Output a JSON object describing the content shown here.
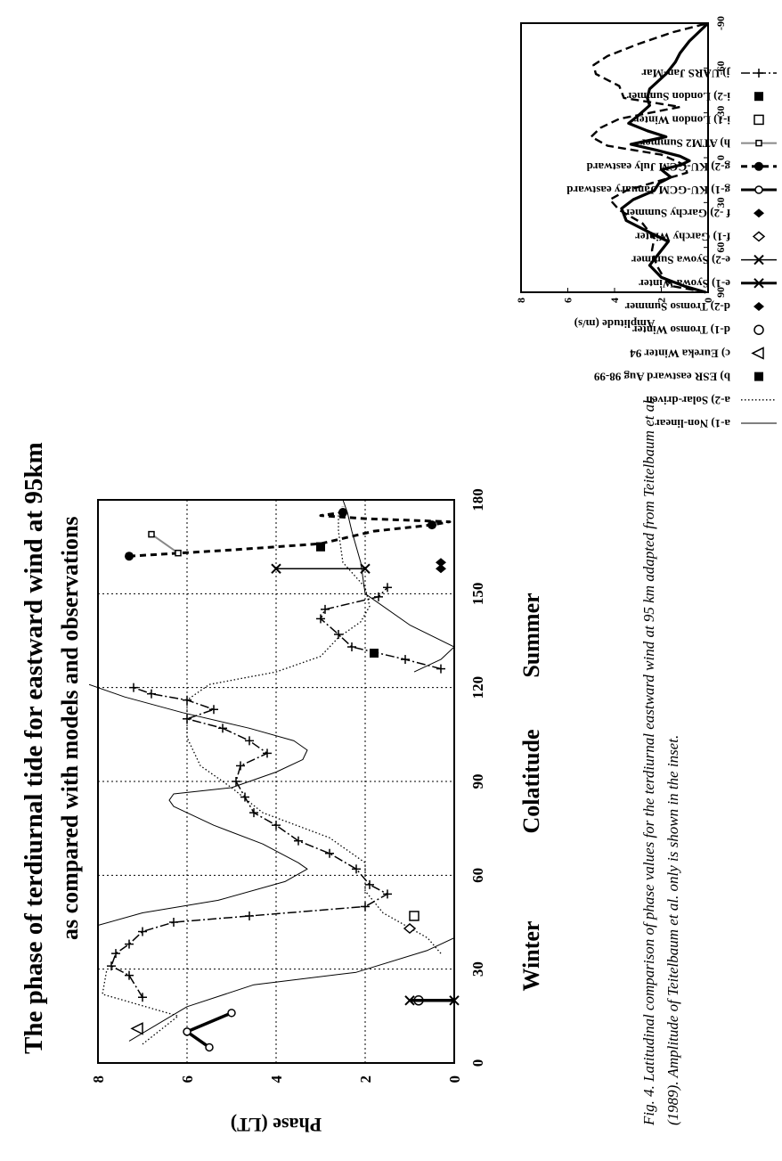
{
  "figure": {
    "title": "The phase of terdiurnal tide for eastward wind at 95km",
    "subtitle": "as compared with models and observations",
    "caption": "Fig. 4.  Latitudinal comparison of phase values for the terdiurnal eastward wind at 95 km adapted from Teitelbaum et al. (1989).  Amplitude of Teitelbaum et al. only is shown in the inset.",
    "season_left": "Winter",
    "season_right": "Summer"
  },
  "chart_data": [
    {
      "type": "line",
      "xlabel": "Colatitude",
      "ylabel": "Phase (LT)",
      "xlim": [
        0,
        180
      ],
      "ylim": [
        0,
        8
      ],
      "xticks": [
        "0",
        "30",
        "60",
        "90",
        "120",
        "150",
        "180"
      ],
      "yticks": [
        "0",
        "2",
        "4",
        "6",
        "8"
      ],
      "grid": true,
      "legend_position": "right",
      "series": [
        {
          "name": "a-1) Non-linear",
          "style": "thin-solid",
          "x": [
            7,
            18,
            25,
            29,
            36,
            40,
            44,
            48,
            52,
            58,
            62,
            64,
            70,
            76,
            82,
            84,
            86,
            88,
            93,
            97,
            100,
            103,
            107,
            112,
            117,
            121,
            125,
            129,
            133,
            140,
            150,
            160,
            170,
            176,
            180
          ],
          "y": [
            7.3,
            6.0,
            4.5,
            2.2,
            0.6,
            0.0,
            8.0,
            7.0,
            5.3,
            3.8,
            3.3,
            3.5,
            4.3,
            5.4,
            6.3,
            6.4,
            6.3,
            5.0,
            4.0,
            3.4,
            3.3,
            3.6,
            4.6,
            6.1,
            7.4,
            8.2,
            0.9,
            0.3,
            0.0,
            1.0,
            2.0,
            2.1,
            2.3,
            2.4,
            2.5
          ]
        },
        {
          "name": "a-2) Solar-driven",
          "style": "fine-dotted",
          "x": [
            6,
            15,
            22,
            30,
            35,
            40,
            48,
            55,
            64,
            72,
            80,
            88,
            95,
            104,
            110,
            116,
            121,
            125,
            130,
            136,
            141,
            146,
            152,
            160,
            170,
            176
          ],
          "y": [
            7.0,
            6.2,
            7.9,
            7.8,
            0.3,
            0.6,
            1.6,
            2.0,
            2.0,
            2.8,
            4.3,
            5.0,
            5.7,
            6.0,
            6.0,
            6.0,
            5.5,
            4.0,
            3.0,
            2.6,
            2.1,
            1.9,
            2.0,
            2.5,
            2.6,
            2.6
          ]
        },
        {
          "name": "b) ESR eastward Aug 98-99",
          "style": "marker-square-filled",
          "x": [
            131,
            165
          ],
          "y": [
            1.8,
            3.0
          ]
        },
        {
          "name": "c) Eureka Winter 94",
          "style": "marker-triangle",
          "x": [
            11
          ],
          "y": [
            7.1
          ]
        },
        {
          "name": "d-1) Tromso Winter",
          "style": "marker-circle",
          "x": [
            20
          ],
          "y": [
            0.8
          ]
        },
        {
          "name": "d-2) Tromso Summer",
          "style": "marker-diamond-filled",
          "x": [
            160
          ],
          "y": [
            0.3
          ]
        },
        {
          "name": "e-1) Syowa Winter",
          "style": "thick-bar-x",
          "x": [
            20,
            20
          ],
          "y": [
            0.0,
            1.0
          ]
        },
        {
          "name": "e-2) Syowa Summer",
          "style": "thin-bar-x",
          "x": [
            158,
            158
          ],
          "y": [
            4.0,
            2.0
          ]
        },
        {
          "name": "f-1) Garchy Winter",
          "style": "marker-diamond",
          "x": [
            43
          ],
          "y": [
            1.0
          ]
        },
        {
          "name": "f -2) Garchy Summer",
          "style": "marker-diamond-filled",
          "x": [
            158
          ],
          "y": [
            0.3
          ]
        },
        {
          "name": "g-1) KU-GCM January eastward",
          "style": "thick-solid-circle",
          "x": [
            5,
            10,
            16
          ],
          "y": [
            5.5,
            6.0,
            5.0
          ]
        },
        {
          "name": "g-2) KU-GCM July eastward",
          "style": "thick-dashed-circle",
          "x": [
            162,
            164,
            166,
            168,
            170,
            172,
            173,
            174,
            175,
            176,
            178
          ],
          "y": [
            7.3,
            5.0,
            3.0,
            2.4,
            1.8,
            0.5,
            0.1,
            2.0,
            3.0,
            2.5,
            2.5
          ]
        },
        {
          "name": "h) ATM2 Summer",
          "style": "thin-gray-square",
          "x": [
            163,
            169
          ],
          "y": [
            6.2,
            6.8
          ]
        },
        {
          "name": "i-1) London Winter",
          "style": "marker-square",
          "x": [
            47
          ],
          "y": [
            0.9
          ]
        },
        {
          "name": "i-2) London Summer",
          "style": "marker-square-filled",
          "x": [
            165
          ],
          "y": [
            3.0
          ]
        },
        {
          "name": "j) UARS Jan-Mar",
          "style": "dash-dot-plus",
          "x": [
            21,
            28,
            31,
            35,
            38,
            42,
            45,
            47,
            50,
            54,
            57,
            62,
            67,
            71,
            76,
            80,
            85,
            90,
            95,
            99,
            103,
            107,
            110,
            113,
            116,
            118,
            120,
            126,
            129,
            133,
            137,
            142,
            145,
            149,
            152
          ],
          "y": [
            7.0,
            7.3,
            7.7,
            7.6,
            7.3,
            7.0,
            6.3,
            4.6,
            2.0,
            1.5,
            1.9,
            2.2,
            2.8,
            3.5,
            4.0,
            4.5,
            4.7,
            4.9,
            4.8,
            4.2,
            4.6,
            5.2,
            6.0,
            5.4,
            6.0,
            6.8,
            7.2,
            0.3,
            1.1,
            2.3,
            2.6,
            3.0,
            2.9,
            1.7,
            1.5
          ]
        }
      ]
    },
    {
      "type": "line",
      "ylabel": "Amplitude (m/s)",
      "xlim": [
        90,
        -90
      ],
      "ylim": [
        0,
        8
      ],
      "xticks": [
        "90",
        "60",
        "30",
        "0",
        "-30",
        "-60",
        "-90"
      ],
      "yticks": [
        "0",
        "2",
        "4",
        "6",
        "8"
      ],
      "grid": false,
      "series": [
        {
          "style": "solid",
          "x": [
            90,
            86,
            80,
            72,
            62,
            56,
            50,
            42,
            34,
            28,
            22,
            17,
            13,
            8,
            5,
            2,
            -1,
            -5,
            -9,
            -14,
            -18,
            -23,
            -28,
            -35,
            -40,
            -46,
            -56,
            -64,
            -70,
            -78,
            -84,
            -90
          ],
          "y": [
            0.1,
            1.0,
            2.0,
            2.5,
            2.0,
            1.7,
            2.5,
            3.5,
            3.7,
            3.2,
            2.3,
            2.1,
            1.6,
            2.0,
            1.2,
            0.8,
            1.2,
            2.2,
            3.3,
            1.8,
            2.6,
            3.4,
            3.0,
            2.5,
            2.6,
            2.5,
            1.8,
            1.4,
            1.2,
            0.8,
            0.4,
            0.0
          ]
        },
        {
          "style": "dashed",
          "x": [
            90,
            86,
            80,
            72,
            62,
            54,
            44,
            35,
            28,
            22,
            16,
            10,
            5,
            2,
            -2,
            -8,
            -14,
            -20,
            -26,
            -34,
            -40,
            -48,
            -56,
            -62,
            -68,
            -76,
            -84,
            -90
          ],
          "y": [
            0.1,
            1.5,
            1.9,
            2.2,
            2.4,
            2.3,
            2.8,
            3.8,
            4.2,
            3.5,
            2.2,
            0.9,
            1.0,
            1.4,
            2.0,
            4.3,
            5.0,
            4.6,
            3.8,
            1.2,
            3.6,
            3.8,
            4.8,
            4.9,
            4.3,
            3.0,
            1.5,
            0.0
          ]
        }
      ]
    }
  ]
}
